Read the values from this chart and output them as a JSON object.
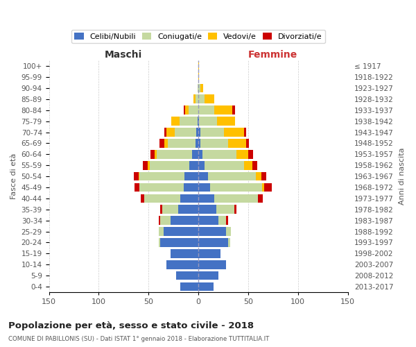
{
  "age_groups": [
    "0-4",
    "5-9",
    "10-14",
    "15-19",
    "20-24",
    "25-29",
    "30-34",
    "35-39",
    "40-44",
    "45-49",
    "50-54",
    "55-59",
    "60-64",
    "65-69",
    "70-74",
    "75-79",
    "80-84",
    "85-89",
    "90-94",
    "95-99",
    "100+"
  ],
  "birth_years": [
    "2013-2017",
    "2008-2012",
    "2003-2007",
    "1998-2002",
    "1993-1997",
    "1988-1992",
    "1983-1987",
    "1978-1982",
    "1973-1977",
    "1968-1972",
    "1963-1967",
    "1958-1962",
    "1953-1957",
    "1948-1952",
    "1943-1947",
    "1938-1942",
    "1933-1937",
    "1928-1932",
    "1923-1927",
    "1918-1922",
    "≤ 1917"
  ],
  "male_celibe": [
    18,
    22,
    32,
    28,
    38,
    35,
    28,
    20,
    18,
    15,
    14,
    9,
    6,
    3,
    2,
    1,
    0,
    0,
    0,
    0,
    0
  ],
  "male_coniugato": [
    0,
    0,
    0,
    0,
    2,
    5,
    10,
    16,
    36,
    44,
    45,
    40,
    36,
    28,
    22,
    18,
    10,
    3,
    1,
    0,
    0
  ],
  "male_vedovo": [
    0,
    0,
    0,
    0,
    0,
    0,
    0,
    0,
    0,
    0,
    1,
    2,
    2,
    3,
    8,
    8,
    3,
    2,
    0,
    0,
    0
  ],
  "male_divorziato": [
    0,
    0,
    0,
    0,
    0,
    0,
    2,
    2,
    4,
    5,
    5,
    5,
    4,
    5,
    2,
    0,
    2,
    0,
    0,
    0,
    0
  ],
  "female_nubile": [
    15,
    20,
    28,
    22,
    30,
    28,
    20,
    18,
    16,
    12,
    10,
    6,
    4,
    2,
    2,
    1,
    0,
    0,
    0,
    0,
    0
  ],
  "female_coniugata": [
    0,
    0,
    0,
    0,
    2,
    5,
    8,
    18,
    44,
    52,
    48,
    40,
    34,
    28,
    24,
    18,
    16,
    6,
    2,
    0,
    0
  ],
  "female_vedova": [
    0,
    0,
    0,
    0,
    0,
    0,
    0,
    0,
    0,
    2,
    5,
    8,
    12,
    18,
    20,
    18,
    18,
    10,
    3,
    1,
    1
  ],
  "female_divorziata": [
    0,
    0,
    0,
    0,
    0,
    0,
    2,
    2,
    5,
    8,
    5,
    5,
    5,
    3,
    2,
    0,
    3,
    0,
    0,
    0,
    0
  ],
  "color_celibe": "#4472c4",
  "color_coniugato": "#c5d9a0",
  "color_vedovo": "#ffc000",
  "color_divorziato": "#cc0000",
  "xlim": 150,
  "title": "Popolazione per età, sesso e stato civile - 2018",
  "subtitle": "COMUNE DI PABILLONIS (SU) - Dati ISTAT 1° gennaio 2018 - Elaborazione TUTTITALIA.IT",
  "label_maschi": "Maschi",
  "label_femmine": "Femmine",
  "label_fasce": "Fasce di età",
  "label_anni": "Anni di nascita",
  "legend_labels": [
    "Celibi/Nubili",
    "Coniugati/e",
    "Vedovi/e",
    "Divorziati/e"
  ],
  "bg_color": "#ffffff",
  "grid_color": "#cccccc"
}
